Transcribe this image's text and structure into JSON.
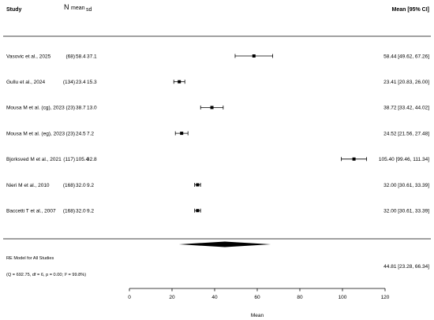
{
  "header": {
    "study": "Study",
    "n": "N",
    "mean": "mean",
    "sd": "sd",
    "estimate": "Mean [95% CI]"
  },
  "studies": [
    {
      "label": "Vasovic et al., 2025",
      "n": "(68)",
      "mean": "58.4",
      "sd": "37.1",
      "estimate": "58.44 [49.62, 67.26]",
      "est": 58.44,
      "lo": 49.62,
      "hi": 67.26
    },
    {
      "label": "Gullu et al., 2024",
      "n": "(134)",
      "mean": "23.4",
      "sd": "15.3",
      "estimate": "23.41 [20.83, 26.00]",
      "est": 23.41,
      "lo": 20.83,
      "hi": 26.0
    },
    {
      "label": "Mousa M et al. (cg), 2023",
      "n": "(23)",
      "mean": "38.7",
      "sd": "13.0",
      "estimate": "38.72 [33.42, 44.02]",
      "est": 38.72,
      "lo": 33.42,
      "hi": 44.02
    },
    {
      "label": "Mousa M et al. (eg), 2023",
      "n": "(23)",
      "mean": "24.5",
      "sd": "7.2",
      "estimate": "24.52 [21.56, 27.48]",
      "est": 24.52,
      "lo": 21.56,
      "hi": 27.48
    },
    {
      "label": "Bjorksved M et al., 2021",
      "n": "(117)",
      "mean": "105.4",
      "sd": "32.8",
      "estimate": "105.40 [99.46, 111.34]",
      "est": 105.4,
      "lo": 99.46,
      "hi": 111.34
    },
    {
      "label": "Nieri M et al., 2010",
      "n": "(168)",
      "mean": "32.0",
      "sd": "9.2",
      "estimate": "32.00 [30.61, 33.39]",
      "est": 32.0,
      "lo": 30.61,
      "hi": 33.39
    },
    {
      "label": "Baccetti T et al., 2007",
      "n": "(168)",
      "mean": "32.0",
      "sd": "9.2",
      "estimate": "32.00 [30.61, 33.39]",
      "est": 32.0,
      "lo": 30.61,
      "hi": 33.39
    }
  ],
  "summary": {
    "label": "RE Model for All Studies",
    "heterogeneity": "(Q = 692.75, df = 6, p = 0.00; I² = 99.8%)",
    "estimate": "44.81 [23.28, 66.34]",
    "est": 44.81,
    "lo": 23.28,
    "hi": 66.34
  },
  "chart_data": {
    "type": "scatter",
    "subtype": "forest-plot",
    "xlabel": "Mean",
    "xlim": [
      0,
      120
    ],
    "xticks": [
      0,
      20,
      40,
      60,
      80,
      100,
      120
    ],
    "x_tick_labels": [
      "0",
      "20",
      "40",
      "60",
      "80",
      "100",
      "120"
    ],
    "categories": [
      "Vasovic et al., 2025",
      "Gullu et al., 2024",
      "Mousa M et al. (cg), 2023",
      "Mousa M et al. (eg), 2023",
      "Bjorksved M et al., 2021",
      "Nieri M et al., 2010",
      "Baccetti T et al., 2007"
    ],
    "estimates": [
      58.44,
      23.41,
      38.72,
      24.52,
      105.4,
      32.0,
      32.0
    ],
    "ci_lower": [
      49.62,
      20.83,
      33.42,
      21.56,
      99.46,
      30.61,
      30.61
    ],
    "ci_upper": [
      67.26,
      26.0,
      44.02,
      27.48,
      111.34,
      33.39,
      33.39
    ],
    "pooled": {
      "estimate": 44.81,
      "ci_lower": 23.28,
      "ci_upper": 66.34
    },
    "grid": false,
    "legend": "none"
  }
}
